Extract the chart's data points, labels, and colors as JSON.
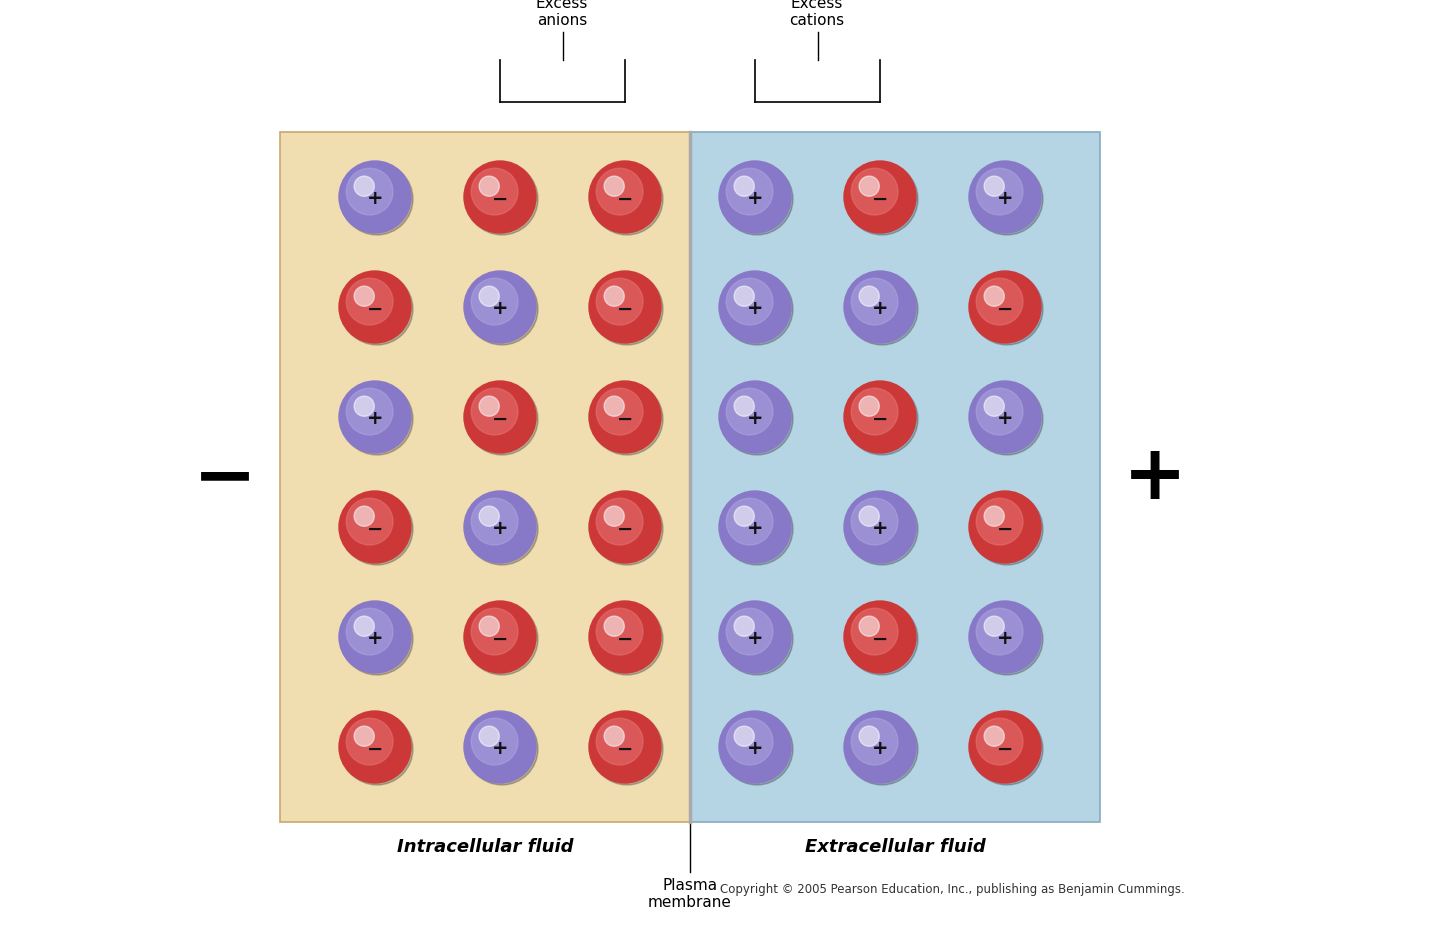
{
  "bg_color": "#ffffff",
  "intracellular_color": "#f0ddb0",
  "extracellular_color": "#b5d5e5",
  "plus_ion_color": "#8878c8",
  "minus_ion_color": "#cc3838",
  "copyright": "Copyright © 2005 Pearson Education, Inc., publishing as Benjamin Cummings.",
  "label_intracellular": "Intracellular fluid",
  "label_extracellular": "Extracellular fluid",
  "label_plasma": "Plasma\nmembrane",
  "label_excess_anions": "Excess\nanions",
  "label_excess_cations": "Excess\ncations",
  "label_minus": "−",
  "label_plus": "+",
  "intracellular_ions": [
    [
      "+",
      "-",
      "-"
    ],
    [
      "-",
      "+",
      "-"
    ],
    [
      "+",
      "-",
      "-"
    ],
    [
      "-",
      "+",
      "-"
    ],
    [
      "+",
      "-",
      "-"
    ],
    [
      "-",
      "+",
      "-"
    ]
  ],
  "extracellular_ions": [
    [
      "+",
      "-",
      "+"
    ],
    [
      "+",
      "+",
      "-"
    ],
    [
      "+",
      "-",
      "+"
    ],
    [
      "+",
      "+",
      "-"
    ],
    [
      "+",
      "-",
      "+"
    ],
    [
      "+",
      "+",
      "-"
    ]
  ],
  "fig_width": 14.4,
  "fig_height": 9.53
}
